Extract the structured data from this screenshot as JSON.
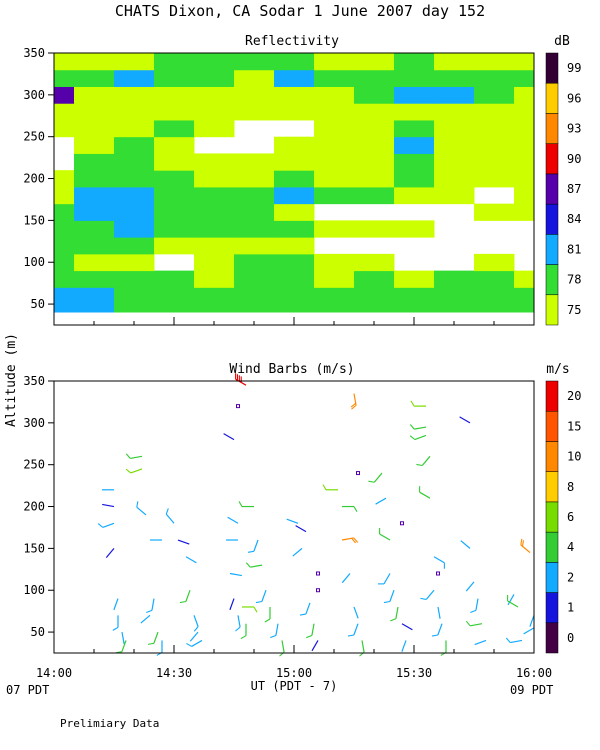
{
  "header": {
    "title": "CHATS Dixon, CA  Sodar    1 June 2007   day 152"
  },
  "shared_axes": {
    "ylabel": "Altitude (m)",
    "xlabel": "UT  (PDT - 7)",
    "x_tick_labels": [
      "14:00",
      "14:30",
      "15:00",
      "15:30",
      "16:00"
    ],
    "left_bottom_label": "07 PDT",
    "right_bottom_label": "09 PDT",
    "footer_note": "Prelimiary Data"
  },
  "colors": {
    "refl_levels": [
      "#ccff00",
      "#33dd33",
      "#11aaff",
      "#1515dd",
      "#5500aa",
      "#ee0000",
      "#ff8800",
      "#ffcc00",
      "#330033"
    ],
    "wind_levels": [
      "#440044",
      "#1515dd",
      "#11aaff",
      "#33cc33",
      "#77dd00",
      "#ffcc00",
      "#ff8800",
      "#ff5500",
      "#ee0000"
    ]
  },
  "chart_data": [
    {
      "type": "heatmap",
      "title": "Reflectivity",
      "ylim": [
        25,
        350
      ],
      "xlim": [
        "14:00",
        "16:00"
      ],
      "y_ticks": [
        50,
        100,
        150,
        200,
        250,
        300,
        350
      ],
      "colorbar_unit": "dB",
      "colorbar_labels": [
        "75",
        "78",
        "81",
        "84",
        "87",
        "90",
        "93",
        "96",
        "99"
      ],
      "x_minutes": [
        0,
        10,
        20,
        30,
        40,
        50,
        60,
        70,
        80,
        90,
        100,
        110,
        120
      ],
      "y_altitudes": [
        40,
        60,
        80,
        100,
        120,
        140,
        160,
        180,
        200,
        220,
        240,
        260,
        280,
        300,
        320,
        340
      ],
      "levels_db": [
        [
          2,
          2,
          1,
          1,
          1,
          1,
          1,
          1,
          1,
          1,
          1,
          1,
          1
        ],
        [
          2,
          2,
          1,
          1,
          1,
          1,
          1,
          1,
          1,
          1,
          1,
          1,
          1
        ],
        [
          1,
          1,
          1,
          1,
          0,
          1,
          1,
          0,
          1,
          0,
          1,
          1,
          0
        ],
        [
          1,
          0,
          0,
          -1,
          0,
          1,
          1,
          0,
          0,
          -1,
          -1,
          0,
          -1
        ],
        [
          1,
          1,
          1,
          0,
          0,
          0,
          0,
          -1,
          -1,
          -1,
          -1,
          -1,
          -1
        ],
        [
          1,
          1,
          2,
          1,
          1,
          1,
          1,
          0,
          0,
          0,
          -1,
          -1,
          -1
        ],
        [
          1,
          2,
          2,
          1,
          1,
          1,
          0,
          -1,
          -1,
          -1,
          -1,
          0,
          0
        ],
        [
          0,
          2,
          2,
          1,
          1,
          1,
          2,
          1,
          1,
          0,
          0,
          -1,
          0
        ],
        [
          0,
          1,
          1,
          1,
          0,
          0,
          1,
          0,
          0,
          1,
          0,
          0,
          0
        ],
        [
          -1,
          1,
          1,
          0,
          0,
          0,
          0,
          0,
          0,
          1,
          0,
          0,
          0
        ],
        [
          -1,
          0,
          1,
          0,
          -1,
          -1,
          0,
          0,
          0,
          2,
          0,
          0,
          0
        ],
        [
          0,
          0,
          0,
          1,
          0,
          -1,
          -1,
          0,
          0,
          1,
          0,
          0,
          0
        ],
        [
          0,
          0,
          0,
          0,
          0,
          0,
          0,
          0,
          0,
          0,
          0,
          0,
          0
        ],
        [
          4,
          0,
          0,
          0,
          0,
          0,
          0,
          0,
          1,
          2,
          2,
          1,
          0
        ],
        [
          1,
          1,
          2,
          1,
          1,
          0,
          2,
          1,
          1,
          1,
          1,
          1,
          1
        ],
        [
          0,
          0,
          0,
          1,
          1,
          1,
          1,
          0,
          0,
          1,
          0,
          0,
          0
        ]
      ]
    },
    {
      "type": "scatter",
      "title": "Wind Barbs (m/s)",
      "ylim": [
        25,
        350
      ],
      "xlim": [
        "14:00",
        "16:00"
      ],
      "y_ticks": [
        50,
        100,
        150,
        200,
        250,
        300,
        350
      ],
      "colorbar_unit": "m/s",
      "colorbar_labels": [
        "0",
        "1",
        "2",
        "4",
        "6",
        "8",
        "10",
        "15",
        "20"
      ],
      "barbs": [
        {
          "t": 15,
          "z": 220,
          "dir": 270,
          "speed": 2
        },
        {
          "t": 15,
          "z": 200,
          "dir": 280,
          "speed": 1
        },
        {
          "t": 15,
          "z": 180,
          "dir": 250,
          "speed": 3
        },
        {
          "t": 15,
          "z": 150,
          "dir": 220,
          "speed": 1
        },
        {
          "t": 16,
          "z": 90,
          "dir": 200,
          "speed": 2
        },
        {
          "t": 16,
          "z": 70,
          "dir": 180,
          "speed": 3
        },
        {
          "t": 17,
          "z": 50,
          "dir": 170,
          "speed": 2
        },
        {
          "t": 18,
          "z": 40,
          "dir": 200,
          "speed": 4
        },
        {
          "t": 22,
          "z": 260,
          "dir": 260,
          "speed": 5
        },
        {
          "t": 22,
          "z": 245,
          "dir": 250,
          "speed": 6
        },
        {
          "t": 23,
          "z": 190,
          "dir": 310,
          "speed": 3
        },
        {
          "t": 24,
          "z": 160,
          "dir": 90,
          "speed": 2
        },
        {
          "t": 24,
          "z": 70,
          "dir": 230,
          "speed": 2
        },
        {
          "t": 25,
          "z": 90,
          "dir": 190,
          "speed": 3
        },
        {
          "t": 26,
          "z": 50,
          "dir": 200,
          "speed": 4
        },
        {
          "t": 27,
          "z": 40,
          "dir": 180,
          "speed": 3
        },
        {
          "t": 30,
          "z": 180,
          "dir": 320,
          "speed": 3
        },
        {
          "t": 31,
          "z": 160,
          "dir": 110,
          "speed": 1
        },
        {
          "t": 33,
          "z": 140,
          "dir": 120,
          "speed": 2
        },
        {
          "t": 34,
          "z": 100,
          "dir": 200,
          "speed": 4
        },
        {
          "t": 35,
          "z": 70,
          "dir": 160,
          "speed": 3
        },
        {
          "t": 36,
          "z": 50,
          "dir": 220,
          "speed": 2
        },
        {
          "t": 37,
          "z": 40,
          "dir": 240,
          "speed": 3
        },
        {
          "t": 43,
          "z": 160,
          "dir": 90,
          "speed": 2
        },
        {
          "t": 44,
          "z": 120,
          "dir": 100,
          "speed": 2
        },
        {
          "t": 45,
          "z": 90,
          "dir": 200,
          "speed": 1
        },
        {
          "t": 46,
          "z": 70,
          "dir": 170,
          "speed": 3
        },
        {
          "t": 46,
          "z": 180,
          "dir": 300,
          "speed": 2
        },
        {
          "t": 45,
          "z": 280,
          "dir": 300,
          "speed": 1
        },
        {
          "t": 47,
          "z": 80,
          "dir": 90,
          "speed": 6
        },
        {
          "t": 48,
          "z": 60,
          "dir": 180,
          "speed": 4
        },
        {
          "t": 48,
          "z": 345,
          "dir": 300,
          "speed": 20
        },
        {
          "t": 50,
          "z": 200,
          "dir": 270,
          "speed": 5
        },
        {
          "t": 51,
          "z": 160,
          "dir": 200,
          "speed": 3
        },
        {
          "t": 52,
          "z": 130,
          "dir": 260,
          "speed": 4
        },
        {
          "t": 53,
          "z": 100,
          "dir": 200,
          "speed": 3
        },
        {
          "t": 54,
          "z": 80,
          "dir": 180,
          "speed": 4
        },
        {
          "t": 56,
          "z": 60,
          "dir": 190,
          "speed": 3
        },
        {
          "t": 57,
          "z": 40,
          "dir": 170,
          "speed": 4
        },
        {
          "t": 61,
          "z": 180,
          "dir": 290,
          "speed": 2
        },
        {
          "t": 62,
          "z": 150,
          "dir": 230,
          "speed": 2
        },
        {
          "t": 63,
          "z": 170,
          "dir": 300,
          "speed": 1
        },
        {
          "t": 64,
          "z": 85,
          "dir": 200,
          "speed": 3
        },
        {
          "t": 65,
          "z": 60,
          "dir": 190,
          "speed": 4
        },
        {
          "t": 66,
          "z": 40,
          "dir": 210,
          "speed": 1
        },
        {
          "t": 71,
          "z": 220,
          "dir": 270,
          "speed": 6
        },
        {
          "t": 72,
          "z": 200,
          "dir": 90,
          "speed": 5
        },
        {
          "t": 72,
          "z": 160,
          "dir": 80,
          "speed": 10
        },
        {
          "t": 74,
          "z": 120,
          "dir": 220,
          "speed": 2
        },
        {
          "t": 75,
          "z": 80,
          "dir": 160,
          "speed": 2
        },
        {
          "t": 76,
          "z": 60,
          "dir": 200,
          "speed": 3
        },
        {
          "t": 77,
          "z": 40,
          "dir": 170,
          "speed": 4
        },
        {
          "t": 75,
          "z": 335,
          "dir": 170,
          "speed": 10
        },
        {
          "t": 82,
          "z": 240,
          "dir": 220,
          "speed": 4
        },
        {
          "t": 83,
          "z": 210,
          "dir": 240,
          "speed": 2
        },
        {
          "t": 84,
          "z": 160,
          "dir": 300,
          "speed": 5
        },
        {
          "t": 84,
          "z": 120,
          "dir": 210,
          "speed": 3
        },
        {
          "t": 85,
          "z": 100,
          "dir": 200,
          "speed": 3
        },
        {
          "t": 86,
          "z": 80,
          "dir": 190,
          "speed": 4
        },
        {
          "t": 87,
          "z": 60,
          "dir": 120,
          "speed": 1
        },
        {
          "t": 88,
          "z": 40,
          "dir": 200,
          "speed": 2
        },
        {
          "t": 93,
          "z": 320,
          "dir": 270,
          "speed": 6
        },
        {
          "t": 93,
          "z": 295,
          "dir": 260,
          "speed": 5
        },
        {
          "t": 93,
          "z": 285,
          "dir": 250,
          "speed": 4
        },
        {
          "t": 94,
          "z": 260,
          "dir": 220,
          "speed": 4
        },
        {
          "t": 94,
          "z": 210,
          "dir": 300,
          "speed": 5
        },
        {
          "t": 95,
          "z": 140,
          "dir": 120,
          "speed": 3
        },
        {
          "t": 95,
          "z": 100,
          "dir": 220,
          "speed": 3
        },
        {
          "t": 96,
          "z": 80,
          "dir": 170,
          "speed": 2
        },
        {
          "t": 97,
          "z": 60,
          "dir": 200,
          "speed": 3
        },
        {
          "t": 98,
          "z": 40,
          "dir": 180,
          "speed": 4
        },
        {
          "t": 104,
          "z": 300,
          "dir": 300,
          "speed": 1
        },
        {
          "t": 104,
          "z": 150,
          "dir": 310,
          "speed": 2
        },
        {
          "t": 105,
          "z": 110,
          "dir": 220,
          "speed": 2
        },
        {
          "t": 106,
          "z": 90,
          "dir": 190,
          "speed": 3
        },
        {
          "t": 107,
          "z": 60,
          "dir": 260,
          "speed": 4
        },
        {
          "t": 108,
          "z": 40,
          "dir": 250,
          "speed": 2
        },
        {
          "t": 115,
          "z": 95,
          "dir": 210,
          "speed": 2
        },
        {
          "t": 116,
          "z": 80,
          "dir": 300,
          "speed": 4
        },
        {
          "t": 117,
          "z": 40,
          "dir": 260,
          "speed": 3
        },
        {
          "t": 119,
          "z": 145,
          "dir": 310,
          "speed": 10
        },
        {
          "t": 120,
          "z": 70,
          "dir": 200,
          "speed": 2
        },
        {
          "t": 120,
          "z": 55,
          "dir": 240,
          "speed": 2
        }
      ],
      "calm_points": [
        {
          "t": 46,
          "z": 320
        },
        {
          "t": 66,
          "z": 120
        },
        {
          "t": 66,
          "z": 100
        },
        {
          "t": 76,
          "z": 240
        },
        {
          "t": 87,
          "z": 180
        },
        {
          "t": 96,
          "z": 120
        }
      ]
    }
  ]
}
